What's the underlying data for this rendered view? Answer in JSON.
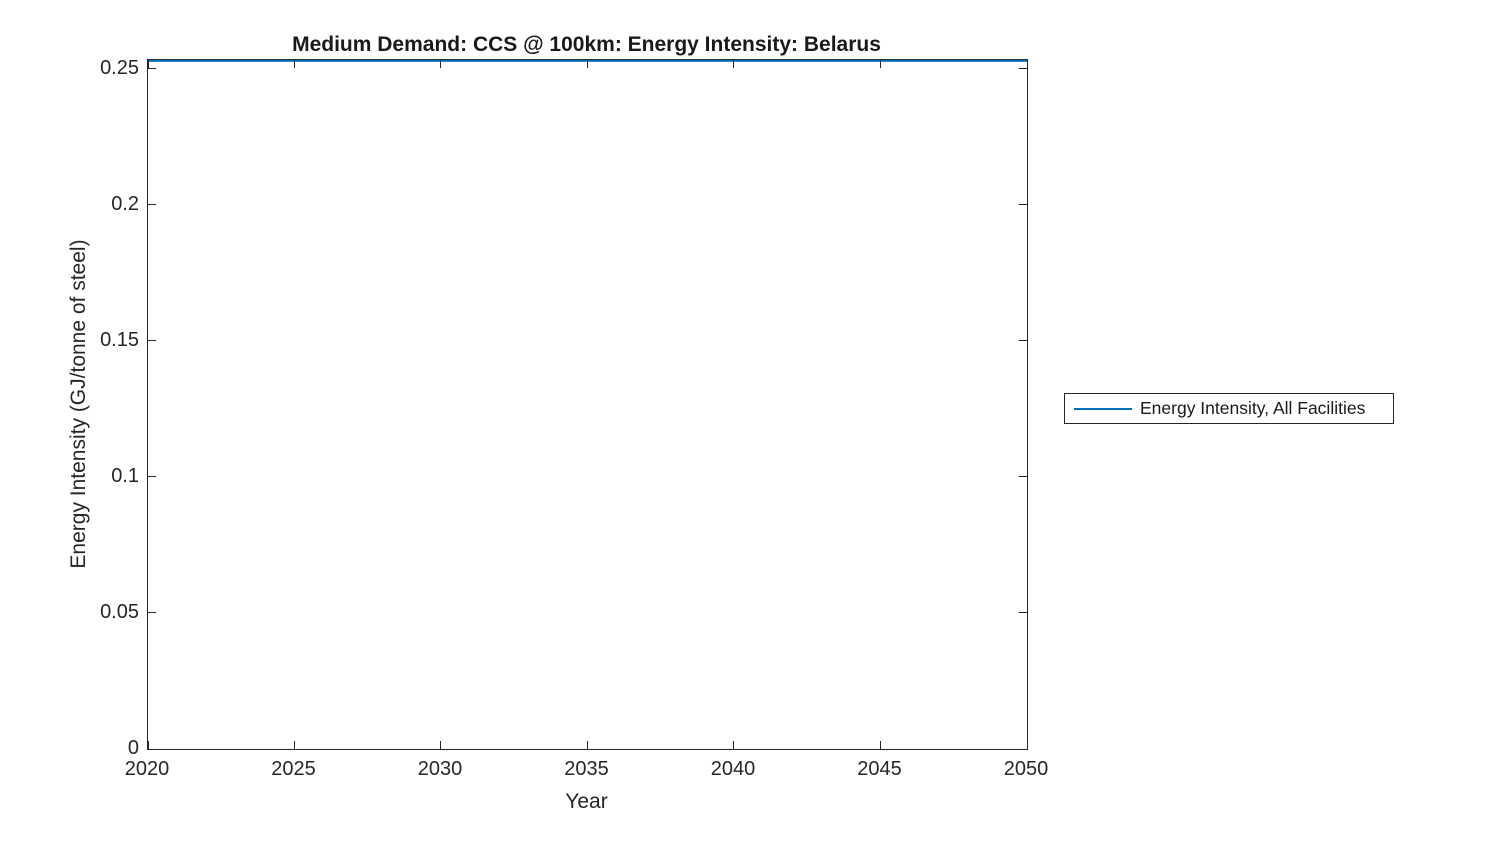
{
  "chart_data": {
    "type": "line",
    "title": "Medium Demand: CCS @ 100km: Energy Intensity: Belarus",
    "xlabel": "Year",
    "ylabel": "Energy Intensity (GJ/tonne of steel)",
    "xlim": [
      2020,
      2050
    ],
    "ylim": [
      0,
      0.2533
    ],
    "x_ticks": [
      2020,
      2025,
      2030,
      2035,
      2040,
      2045,
      2050
    ],
    "y_ticks": [
      0,
      0.05,
      0.1,
      0.15,
      0.2,
      0.25
    ],
    "y_tick_labels": [
      "0",
      "0.05",
      "0.1",
      "0.15",
      "0.2",
      "0.25"
    ],
    "grid": false,
    "legend_position": "right-outside",
    "x": [
      2020,
      2025,
      2030,
      2035,
      2040,
      2045,
      2050
    ],
    "series": [
      {
        "name": "Energy Intensity, All Facilities",
        "color": "#0072BD",
        "values": [
          0.253,
          0.253,
          0.253,
          0.253,
          0.253,
          0.253,
          0.253
        ]
      }
    ]
  },
  "colors": {
    "axis": "#262626",
    "background": "#ffffff",
    "line": "#0072BD"
  }
}
